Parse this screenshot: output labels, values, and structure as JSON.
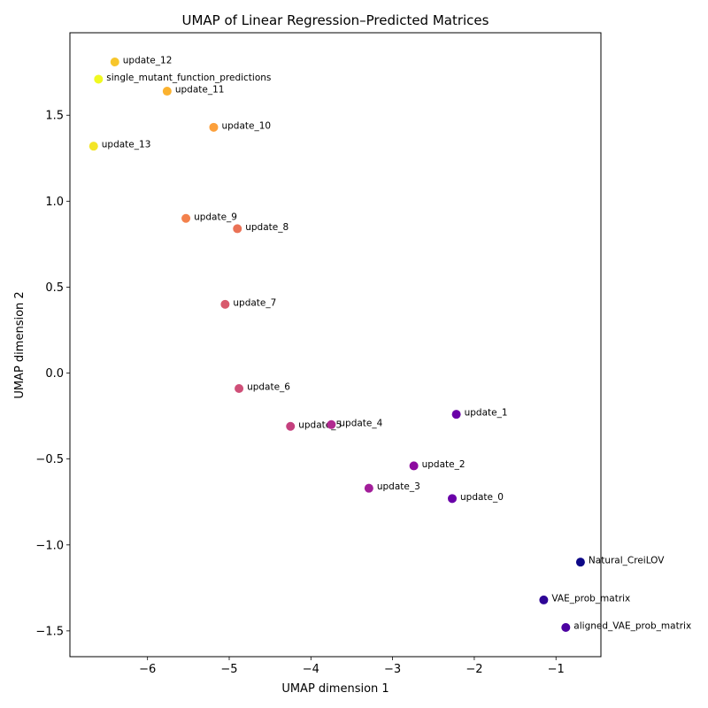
{
  "chart_data": {
    "type": "scatter",
    "title": "UMAP of Linear Regression–Predicted Matrices",
    "xlabel": "UMAP dimension 1",
    "ylabel": "UMAP dimension 2",
    "xlim": [
      -6.95,
      -0.45
    ],
    "ylim": [
      -1.65,
      1.98
    ],
    "xticks": [
      -6,
      -5,
      -4,
      -3,
      -2,
      -1
    ],
    "yticks": [
      -1.5,
      -1.0,
      -0.5,
      0.0,
      0.5,
      1.0,
      1.5
    ],
    "xtick_labels": [
      "−6",
      "−5",
      "−4",
      "−3",
      "−2",
      "−1"
    ],
    "ytick_labels": [
      "−1.5",
      "−1.0",
      "−0.5",
      "0.0",
      "0.5",
      "1.0",
      "1.5"
    ],
    "grid": false,
    "legend": "none",
    "points": [
      {
        "label": "update_12",
        "x": -6.4,
        "y": 1.81,
        "color": "#f7c62b"
      },
      {
        "label": "single_mutant_function_predictions",
        "x": -6.6,
        "y": 1.71,
        "color": "#f0f921"
      },
      {
        "label": "update_11",
        "x": -5.76,
        "y": 1.64,
        "color": "#fbb22f"
      },
      {
        "label": "update_10",
        "x": -5.19,
        "y": 1.43,
        "color": "#fca03b"
      },
      {
        "label": "update_13",
        "x": -6.66,
        "y": 1.32,
        "color": "#f3e527"
      },
      {
        "label": "update_9",
        "x": -5.53,
        "y": 0.9,
        "color": "#f3814c"
      },
      {
        "label": "update_8",
        "x": -4.9,
        "y": 0.84,
        "color": "#ea7256"
      },
      {
        "label": "update_7",
        "x": -5.05,
        "y": 0.4,
        "color": "#d8596c"
      },
      {
        "label": "update_6",
        "x": -4.88,
        "y": -0.09,
        "color": "#cf4f78"
      },
      {
        "label": "update_5",
        "x": -4.25,
        "y": -0.31,
        "color": "#c5407e"
      },
      {
        "label": "update_4",
        "x": -3.75,
        "y": -0.3,
        "color": "#b12a90"
      },
      {
        "label": "update_1",
        "x": -2.22,
        "y": -0.24,
        "color": "#6a00a8"
      },
      {
        "label": "update_2",
        "x": -2.74,
        "y": -0.54,
        "color": "#8d0ba0"
      },
      {
        "label": "update_3",
        "x": -3.29,
        "y": -0.67,
        "color": "#a21e9a"
      },
      {
        "label": "update_0",
        "x": -2.27,
        "y": -0.73,
        "color": "#6900a8"
      },
      {
        "label": "Natural_CreiLOV",
        "x": -0.7,
        "y": -1.1,
        "color": "#0d0887"
      },
      {
        "label": "VAE_prob_matrix",
        "x": -1.15,
        "y": -1.32,
        "color": "#2e0596"
      },
      {
        "label": "aligned_VAE_prob_matrix",
        "x": -0.88,
        "y": -1.48,
        "color": "#4c02a1"
      }
    ]
  }
}
